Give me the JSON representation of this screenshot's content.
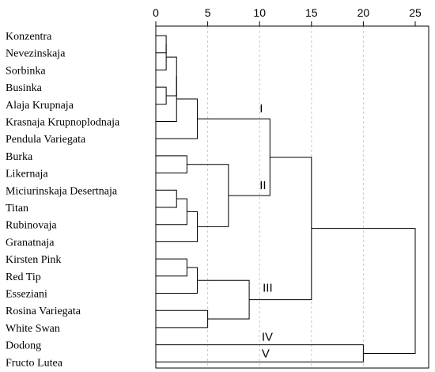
{
  "chart_data": {
    "type": "dendrogram",
    "orientation": "horizontal",
    "xlim": [
      0,
      25
    ],
    "x_ticks": [
      "0",
      "5",
      "10",
      "15",
      "20",
      "25"
    ],
    "grid": "vertical dashed",
    "leaves": [
      "Konzentra",
      "Nevezinskaja",
      "Sorbinka",
      "Businka",
      "Alaja Krupnaja",
      "Krasnaja Krupnoplodnaja",
      "Pendula Variegata",
      "Burka",
      "Likernaja",
      "Miciurinskaja Desertnaja",
      "Titan",
      "Rubinovaja",
      "Granatnaja",
      "Kirsten Pink",
      "Red Tip",
      "Esseziani",
      "Rosina Variegata",
      "White Swan",
      "Dodong",
      "Fructo Lutea"
    ],
    "merges": [
      {
        "children": [
          "L0",
          "L1"
        ],
        "height": 1
      },
      {
        "children": [
          "M0",
          "L2"
        ],
        "height": 1
      },
      {
        "children": [
          "L3",
          "L4"
        ],
        "height": 1
      },
      {
        "children": [
          "M1",
          "M2"
        ],
        "height": 2
      },
      {
        "children": [
          "M3",
          "L5"
        ],
        "height": 2
      },
      {
        "children": [
          "M4",
          "L6"
        ],
        "height": 4
      },
      {
        "children": [
          "L7",
          "L8"
        ],
        "height": 3
      },
      {
        "children": [
          "L9",
          "L10"
        ],
        "height": 2
      },
      {
        "children": [
          "M7",
          "L11"
        ],
        "height": 3
      },
      {
        "children": [
          "M8",
          "L12"
        ],
        "height": 4
      },
      {
        "children": [
          "M6",
          "M9"
        ],
        "height": 7
      },
      {
        "children": [
          "M5",
          "M10"
        ],
        "height": 11
      },
      {
        "children": [
          "L13",
          "L14"
        ],
        "height": 3
      },
      {
        "children": [
          "M12",
          "L15"
        ],
        "height": 4
      },
      {
        "children": [
          "L16",
          "L17"
        ],
        "height": 5
      },
      {
        "children": [
          "M13",
          "M14"
        ],
        "height": 9
      },
      {
        "children": [
          "M11",
          "M15"
        ],
        "height": 15
      },
      {
        "children": [
          "L18",
          "L19"
        ],
        "height": 20
      },
      {
        "children": [
          "M16",
          "M17"
        ],
        "height": 25
      }
    ],
    "cluster_labels": [
      "I",
      "II",
      "III",
      "IV",
      "V"
    ]
  }
}
